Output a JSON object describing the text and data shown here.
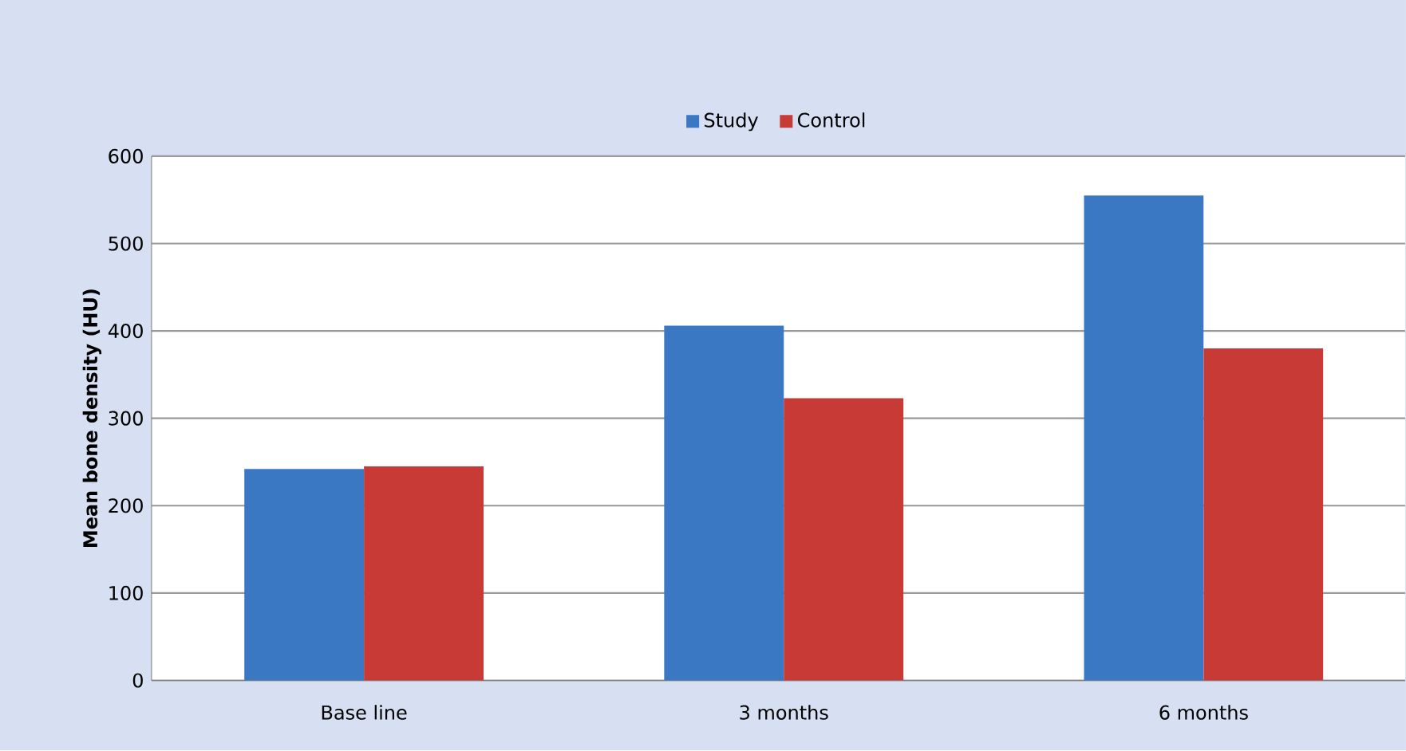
{
  "chart_data": {
    "type": "bar",
    "ylabel": "Mean bone density (HU)",
    "categories": [
      "Base line",
      "3 months",
      "6 months"
    ],
    "series": [
      {
        "name": "Study",
        "color": "#3a78c4",
        "values": [
          242,
          406,
          555
        ]
      },
      {
        "name": "Control",
        "color": "#c83a36",
        "values": [
          245,
          323,
          380
        ]
      }
    ],
    "ylim": [
      0,
      600
    ],
    "yticks": [
      0,
      100,
      200,
      300,
      400,
      500,
      600
    ],
    "grid": "y",
    "legend": "top"
  }
}
